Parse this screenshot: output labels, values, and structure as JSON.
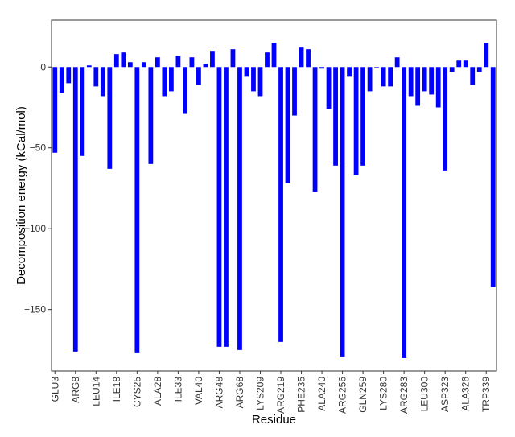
{
  "chart_data": {
    "type": "bar",
    "title": "",
    "xlabel": "Residue",
    "ylabel": "Decomposition energy (kCal/mol)",
    "ylim": [
      -188,
      29
    ],
    "yticks": [
      0,
      -50,
      -100,
      -150
    ],
    "ytick_labels": [
      "0",
      "−50",
      "−100",
      "−150"
    ],
    "x_tick_labels": [
      "GLU3",
      "ARG8",
      "LEU14",
      "ILE18",
      "CYS25",
      "ALA28",
      "ILE33",
      "VAL40",
      "ARG48",
      "ARG68",
      "LYS209",
      "ARG219",
      "PHE235",
      "ALA240",
      "ARG256",
      "GLN259",
      "LYS280",
      "ARG283",
      "LEU300",
      "ASP323",
      "ALA326",
      "TRP339"
    ],
    "x_tick_positions": [
      0,
      3,
      6,
      9,
      12,
      15,
      18,
      21,
      24,
      27,
      30,
      33,
      36,
      39,
      42,
      45,
      48,
      51,
      54,
      57,
      60,
      63
    ],
    "bar_color": "#0000ff",
    "grid": false,
    "values": [
      -53,
      -16,
      -10,
      -176,
      -55,
      1,
      -12,
      -18,
      -63,
      8,
      9,
      3,
      -177,
      3,
      -60,
      6,
      -18,
      -15,
      7,
      -29,
      6,
      -11,
      2,
      10,
      -173,
      -173,
      11,
      -175,
      -6,
      -15,
      -18,
      9,
      15,
      -170,
      -72,
      -30,
      12,
      11,
      -77,
      -1,
      -26,
      -61,
      -179,
      -6,
      -67,
      -61,
      -15,
      0,
      -12,
      -12,
      6,
      -180,
      -18,
      -24,
      -15,
      -17,
      -25,
      -64,
      -3,
      4,
      4,
      -11,
      -3,
      15,
      -136
    ]
  }
}
